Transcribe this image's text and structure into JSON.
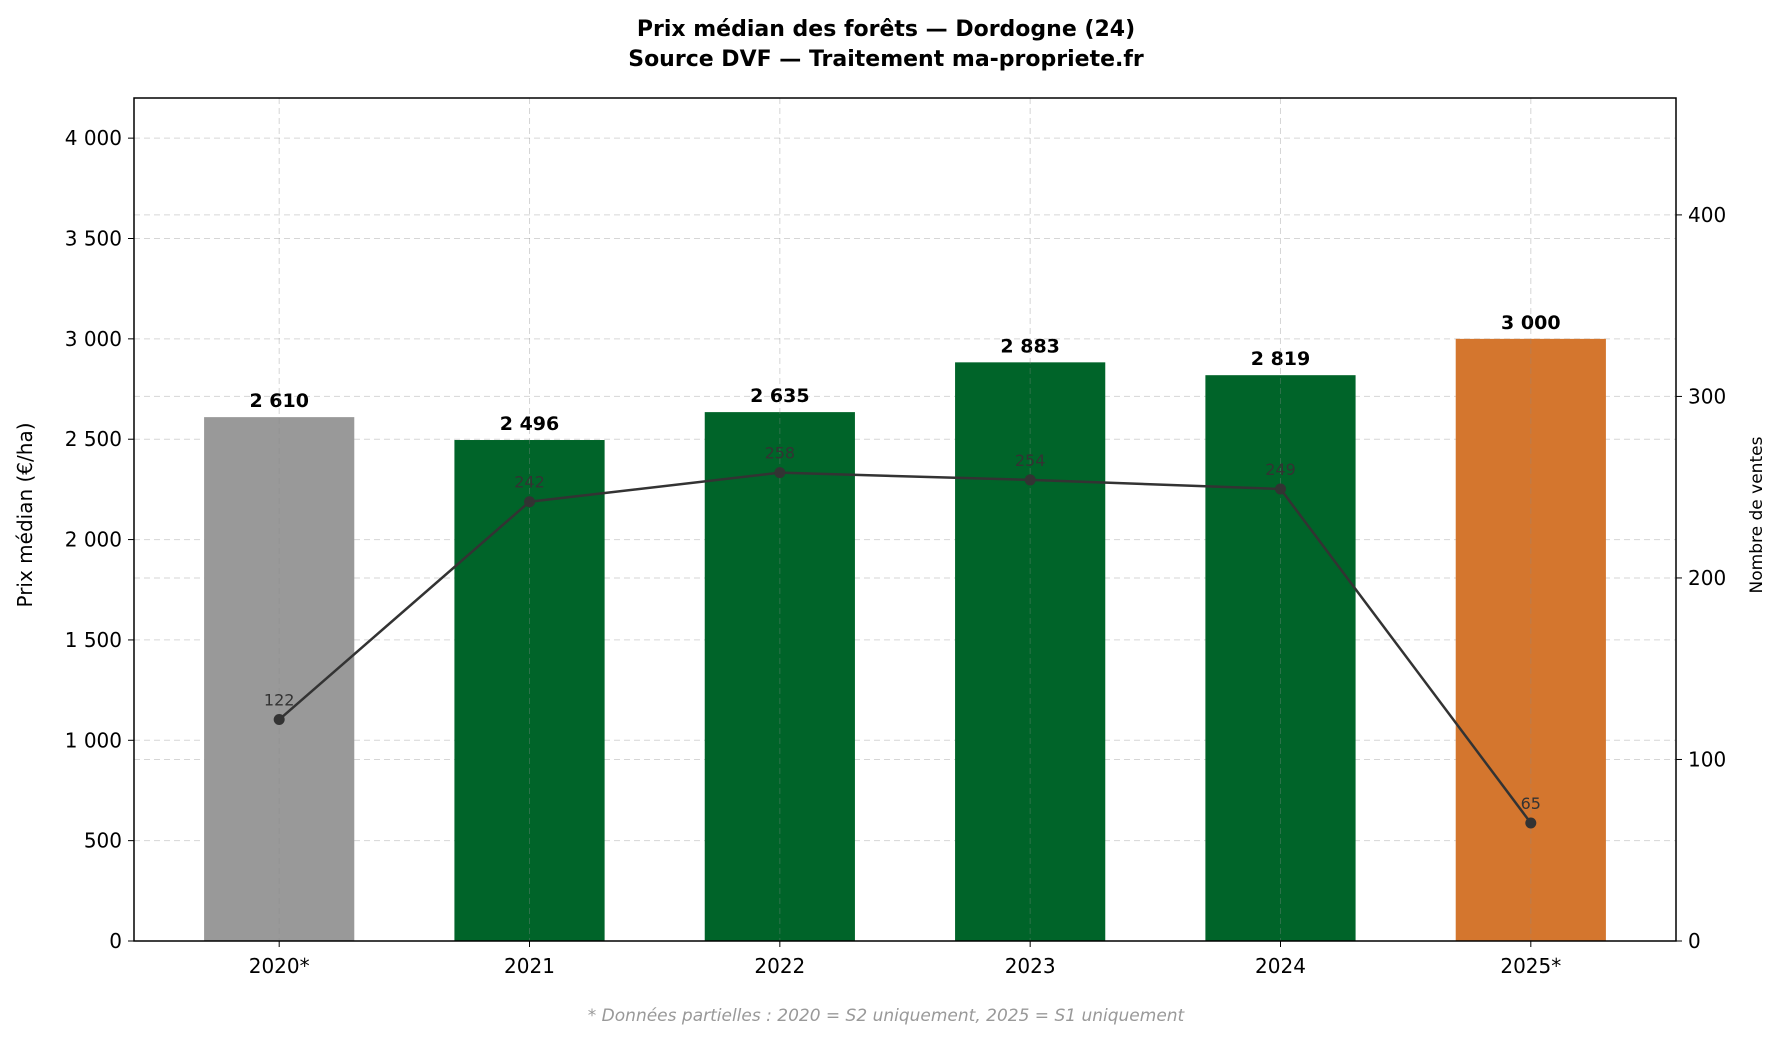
{
  "chart_data": {
    "type": "bar",
    "title": "Prix médian des forêts — Dordogne (24)",
    "subtitle": "Source DVF — Traitement ma-propriete.fr",
    "categories": [
      "2020*",
      "2021",
      "2022",
      "2023",
      "2024",
      "2025*"
    ],
    "ylabel": "Prix médian (€/ha)",
    "ylabel_right": "Nombre de ventes",
    "ylim": [
      0,
      4200
    ],
    "ylim_right": [
      0,
      464.4
    ],
    "yticks": [
      0,
      500,
      1000,
      1500,
      2000,
      2500,
      3000,
      3500,
      4000
    ],
    "ytick_labels": [
      "0",
      "500",
      "1 000",
      "1 500",
      "2 000",
      "2 500",
      "3 000",
      "3 500",
      "4 000"
    ],
    "yticks_right": [
      0,
      100,
      200,
      300,
      400
    ],
    "ytick_labels_right": [
      "0",
      "100",
      "200",
      "300",
      "400"
    ],
    "grid": true,
    "series": [
      {
        "type": "bar",
        "values": [
          2610,
          2496,
          2635,
          2883,
          2819,
          3000
        ],
        "labels": [
          "2 610",
          "2 496",
          "2 635",
          "2 883",
          "2 819",
          "3 000"
        ],
        "colors": [
          "#999999",
          "#006429",
          "#006429",
          "#006429",
          "#006429",
          "#d4762e"
        ]
      },
      {
        "type": "line",
        "axis": "right",
        "values": [
          122,
          242,
          258,
          254,
          249,
          65
        ],
        "labels": [
          "122",
          "242",
          "258",
          "254",
          "249",
          "65"
        ],
        "color": "#333333"
      }
    ],
    "footnote": "* Données partielles : 2020 = S2 uniquement, 2025 = S1 uniquement"
  }
}
